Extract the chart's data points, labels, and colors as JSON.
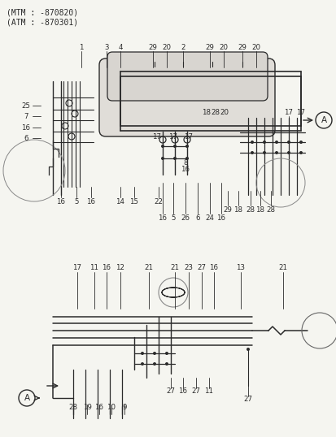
{
  "bg_color": "#f5f5f0",
  "line_color": "#2a2a2a",
  "header1": "(MTM : -870820)",
  "header2": "(ATM : -870301)",
  "fs_header": 7.0,
  "fs_label": 6.2,
  "top_labels_top": [
    [
      "1",
      100,
      58
    ],
    [
      "3",
      131,
      58
    ],
    [
      "4",
      148,
      58
    ],
    [
      "29",
      188,
      58
    ],
    [
      "20",
      205,
      58
    ],
    [
      "2",
      225,
      58
    ],
    [
      "29",
      258,
      58
    ],
    [
      "20",
      275,
      58
    ],
    [
      "29",
      298,
      58
    ],
    [
      "20",
      315,
      58
    ]
  ],
  "top_labels_left": [
    [
      "25",
      52,
      130
    ],
    [
      "7",
      52,
      143
    ],
    [
      "16",
      52,
      157
    ],
    [
      "6",
      52,
      170
    ]
  ],
  "top_labels_bottom_left": [
    [
      "16",
      75,
      248
    ],
    [
      "5",
      94,
      248
    ],
    [
      "16",
      112,
      248
    ],
    [
      "14",
      148,
      248
    ],
    [
      "15",
      165,
      248
    ],
    [
      "22",
      195,
      248
    ]
  ],
  "top_labels_mid": [
    [
      "17",
      193,
      168
    ],
    [
      "17",
      213,
      168
    ],
    [
      "17",
      232,
      168
    ],
    [
      "8",
      228,
      200
    ],
    [
      "16",
      228,
      208
    ],
    [
      "18",
      254,
      138
    ],
    [
      "28",
      265,
      138
    ],
    [
      "20",
      276,
      138
    ]
  ],
  "top_labels_right": [
    [
      "17",
      355,
      138
    ],
    [
      "17",
      370,
      138
    ]
  ],
  "top_labels_bottom_right": [
    [
      "29",
      280,
      258
    ],
    [
      "18",
      293,
      258
    ],
    [
      "28",
      308,
      258
    ],
    [
      "18",
      320,
      258
    ],
    [
      "28",
      333,
      258
    ]
  ],
  "top_labels_bottom_center": [
    [
      "16",
      200,
      268
    ],
    [
      "5",
      213,
      268
    ],
    [
      "26",
      228,
      268
    ],
    [
      "6",
      243,
      268
    ],
    [
      "24",
      258,
      268
    ],
    [
      "16",
      272,
      268
    ]
  ],
  "bot_labels_top": [
    [
      "17",
      95,
      330
    ],
    [
      "11",
      116,
      330
    ],
    [
      "16",
      131,
      330
    ],
    [
      "12",
      148,
      330
    ],
    [
      "21",
      183,
      330
    ],
    [
      "21",
      215,
      330
    ],
    [
      "23",
      232,
      330
    ],
    [
      "27",
      248,
      330
    ],
    [
      "16",
      263,
      330
    ],
    [
      "13",
      296,
      330
    ],
    [
      "21",
      348,
      330
    ]
  ],
  "bot_labels_bottom": [
    [
      "27",
      210,
      482
    ],
    [
      "16",
      225,
      482
    ],
    [
      "27",
      241,
      482
    ],
    [
      "11",
      257,
      482
    ]
  ],
  "bot_labels_far_right": [
    [
      "27",
      305,
      492
    ]
  ],
  "bot_labels_very_bottom": [
    [
      "28",
      90,
      502
    ],
    [
      "19",
      107,
      502
    ],
    [
      "16",
      122,
      502
    ],
    [
      "10",
      137,
      502
    ],
    [
      "9",
      153,
      502
    ]
  ]
}
